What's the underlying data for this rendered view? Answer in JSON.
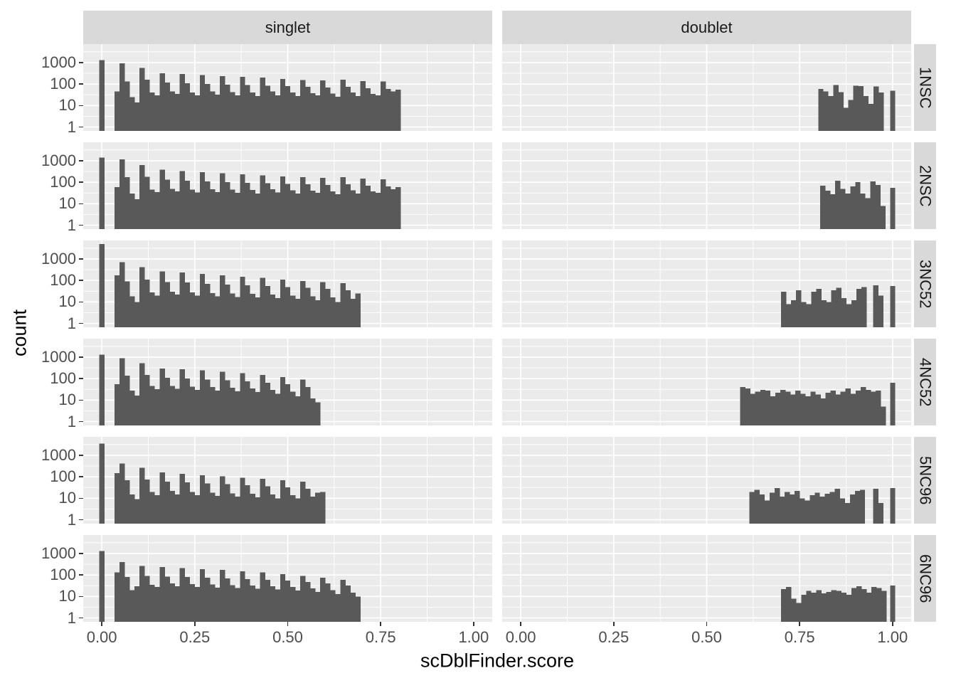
{
  "figure": {
    "x_axis_title": "scDblFinder.score",
    "y_axis_title": "count",
    "col_facets": [
      "singlet",
      "doublet"
    ],
    "row_facets": [
      "1NSC",
      "2NSC",
      "3NC52",
      "4NC52",
      "5NC96",
      "6NC96"
    ],
    "x_tick_labels": [
      "0.00",
      "0.25",
      "0.50",
      "0.75",
      "1.00"
    ],
    "y_tick_labels": [
      "1000",
      "100",
      "10",
      "1"
    ],
    "colors": {
      "bar": "#595959",
      "panel_bg": "#EBEBEB",
      "strip_bg": "#D9D9D9",
      "grid": "#FFFFFF",
      "tick_label": "#4D4D4D",
      "strip_text": "#1A1A1A",
      "axis_title": "#000000",
      "tick_mark": "#333333"
    }
  },
  "chart_data": {
    "type": "bar",
    "title": "",
    "xlabel": "scDblFinder.score",
    "ylabel": "count",
    "y_scale": "log10",
    "grid": true,
    "facet_columns": [
      "singlet",
      "doublet"
    ],
    "facet_rows": [
      "1NSC",
      "2NSC",
      "3NC52",
      "4NC52",
      "5NC96",
      "6NC96"
    ],
    "scales": {
      "x_domain": [
        -0.05,
        1.05
      ],
      "y_log10_domain": [
        -0.18,
        3.86
      ],
      "x_major": [
        0,
        0.25,
        0.5,
        0.75,
        1.0
      ],
      "x_minor": [
        0.125,
        0.375,
        0.625,
        0.875
      ],
      "y_major_values": [
        1,
        10,
        100,
        1000
      ],
      "y_minor_log10": [
        0.5,
        1.5,
        2.5,
        3.5
      ],
      "binwidth": 0.0135
    },
    "panels": [
      {
        "col": "singlet",
        "row": "1NSC",
        "segments": [
          {
            "x_start": -0.00675,
            "counts": [
              1300
            ]
          },
          {
            "x_start": 0.034,
            "counts": [
              45,
              930,
              130,
              25,
              14,
              560,
              160,
              40,
              30,
              320,
              120,
              45,
              35,
              290,
              110,
              40,
              30,
              260,
              100,
              45,
              32,
              230,
              95,
              42,
              30,
              215,
              90,
              40,
              28,
              200,
              85,
              45,
              30,
              170,
              80,
              40,
              28,
              155,
              75,
              38,
              30,
              150,
              70,
              36,
              26,
              160,
              75,
              40,
              28,
              140,
              65,
              35,
              30,
              130,
              60,
              45,
              55
            ]
          }
        ]
      },
      {
        "col": "doublet",
        "row": "1NSC",
        "segments": [
          {
            "x_start": 0.8,
            "counts": [
              60,
              45,
              28,
              90,
              42,
              8,
              18,
              85,
              80,
              28,
              12,
              78,
              40
            ]
          },
          {
            "x_start": 0.99325,
            "counts": [
              50
            ]
          }
        ]
      },
      {
        "col": "singlet",
        "row": "2NSC",
        "segments": [
          {
            "x_start": -0.00675,
            "counts": [
              1400
            ]
          },
          {
            "x_start": 0.034,
            "counts": [
              60,
              1150,
              170,
              30,
              16,
              640,
              180,
              45,
              35,
              380,
              130,
              50,
              38,
              330,
              120,
              45,
              33,
              290,
              110,
              48,
              35,
              260,
              100,
              45,
              32,
              235,
              95,
              43,
              30,
              210,
              90,
              48,
              33,
              185,
              85,
              42,
              30,
              170,
              80,
              40,
              32,
              160,
              75,
              38,
              28,
              170,
              80,
              42,
              30,
              150,
              70,
              38,
              32,
              140,
              65,
              48,
              60
            ]
          }
        ]
      },
      {
        "col": "doublet",
        "row": "2NSC",
        "segments": [
          {
            "x_start": 0.805,
            "counts": [
              70,
              40,
              28,
              120,
              50,
              30,
              65,
              100,
              30,
              18,
              110,
              75,
              8
            ]
          },
          {
            "x_start": 0.99325,
            "counts": [
              55
            ]
          }
        ]
      },
      {
        "col": "singlet",
        "row": "3NC52",
        "segments": [
          {
            "x_start": -0.00675,
            "counts": [
              5000
            ]
          },
          {
            "x_start": 0.034,
            "counts": [
              170,
              700,
              90,
              18,
              10,
              420,
              110,
              28,
              20,
              260,
              85,
              30,
              22,
              230,
              80,
              28,
              20,
              200,
              70,
              26,
              18,
              170,
              65,
              25,
              17,
              150,
              60,
              24,
              16,
              130,
              55,
              22,
              15,
              110,
              50,
              20,
              14,
              95,
              45,
              18,
              12,
              85,
              40,
              16,
              10,
              75,
              35,
              14,
              25
            ]
          }
        ]
      },
      {
        "col": "doublet",
        "row": "3NC52",
        "segments": [
          {
            "x_start": 0.7,
            "counts": [
              30,
              8,
              12,
              35,
              10,
              8,
              30,
              40,
              12,
              10,
              35,
              45,
              15,
              8,
              12,
              40,
              50
            ]
          },
          {
            "x_start": 0.948,
            "counts": [
              60,
              20
            ]
          },
          {
            "x_start": 0.99325,
            "counts": [
              55
            ]
          }
        ]
      },
      {
        "col": "singlet",
        "row": "4NC52",
        "segments": [
          {
            "x_start": -0.00675,
            "counts": [
              1300
            ]
          },
          {
            "x_start": 0.034,
            "counts": [
              55,
              900,
              140,
              28,
              16,
              520,
              150,
              45,
              32,
              300,
              110,
              45,
              33,
              270,
              100,
              42,
              30,
              240,
              90,
              40,
              28,
              210,
              85,
              38,
              26,
              180,
              75,
              35,
              24,
              150,
              65,
              30,
              20,
              120,
              55,
              25,
              15,
              90,
              40,
              12,
              8
            ]
          }
        ]
      },
      {
        "col": "doublet",
        "row": "4NC52",
        "segments": [
          {
            "x_start": 0.59,
            "counts": [
              40,
              35,
              20,
              25,
              30,
              28,
              15,
              22,
              30,
              25,
              18,
              28,
              20,
              15,
              25,
              18,
              12,
              22,
              28,
              18,
              25,
              35,
              20,
              28,
              40,
              30,
              25,
              28,
              5
            ]
          },
          {
            "x_start": 0.99325,
            "counts": [
              65
            ]
          }
        ]
      },
      {
        "col": "singlet",
        "row": "5NC96",
        "segments": [
          {
            "x_start": -0.00675,
            "counts": [
              3500
            ]
          },
          {
            "x_start": 0.034,
            "counts": [
              150,
              420,
              70,
              15,
              9,
              260,
              75,
              20,
              14,
              160,
              60,
              22,
              15,
              140,
              55,
              20,
              14,
              120,
              50,
              18,
              13,
              105,
              45,
              17,
              12,
              90,
              40,
              16,
              11,
              80,
              36,
              15,
              10,
              70,
              32,
              14,
              10,
              60,
              28,
              12,
              18,
              20
            ]
          }
        ]
      },
      {
        "col": "doublet",
        "row": "5NC96",
        "segments": [
          {
            "x_start": 0.615,
            "counts": [
              20,
              25,
              15,
              8,
              18,
              30,
              12,
              20,
              15,
              22,
              10,
              8,
              14,
              18,
              12,
              16,
              20,
              28,
              10,
              6,
              15,
              22,
              25
            ]
          },
          {
            "x_start": 0.948,
            "counts": [
              28,
              6
            ]
          },
          {
            "x_start": 0.99325,
            "counts": [
              30
            ]
          }
        ]
      },
      {
        "col": "singlet",
        "row": "6NC96",
        "segments": [
          {
            "x_start": -0.00675,
            "counts": [
              1300
            ]
          },
          {
            "x_start": 0.034,
            "counts": [
              130,
              400,
              80,
              20,
              30,
              260,
              90,
              35,
              28,
              230,
              85,
              40,
              30,
              210,
              80,
              38,
              28,
              190,
              75,
              36,
              26,
              170,
              70,
              34,
              25,
              150,
              65,
              32,
              23,
              130,
              60,
              30,
              21,
              110,
              55,
              28,
              19,
              90,
              48,
              24,
              16,
              75,
              40,
              20,
              13,
              60,
              32,
              15,
              10
            ]
          }
        ]
      },
      {
        "col": "doublet",
        "row": "6NC96",
        "segments": [
          {
            "x_start": 0.7,
            "counts": [
              22,
              28,
              8,
              5,
              12,
              18,
              15,
              20,
              14,
              16,
              20,
              18,
              15,
              12,
              25,
              30,
              22,
              15,
              28,
              25,
              18
            ]
          },
          {
            "x_start": 0.99325,
            "counts": [
              32
            ]
          }
        ]
      }
    ]
  }
}
